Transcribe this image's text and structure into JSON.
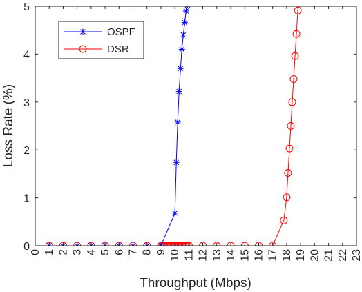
{
  "chart_data": {
    "type": "line",
    "title": "",
    "xlabel": "Throughput (Mbps)",
    "ylabel": "Loss Rate (%)",
    "xlim": [
      0,
      23
    ],
    "ylim": [
      0,
      5
    ],
    "xticks": [
      "0",
      "1",
      "2",
      "3",
      "4",
      "5",
      "6",
      "7",
      "8",
      "9",
      "10",
      "11",
      "12",
      "13",
      "14",
      "15",
      "16",
      "17",
      "18",
      "19",
      "20",
      "21",
      "22",
      "23"
    ],
    "yticks": [
      "0",
      "1",
      "2",
      "3",
      "4",
      "5"
    ],
    "grid": false,
    "legend_position": "top-left",
    "series": [
      {
        "name": "OSPF",
        "color": "#0000ff",
        "marker": "asterisk",
        "x": [
          1,
          2,
          3,
          4,
          5,
          6,
          7,
          8,
          9,
          10,
          10.1,
          10.2,
          10.3,
          10.4,
          10.5,
          10.6,
          10.7,
          10.8,
          10.9,
          11
        ],
        "y": [
          0,
          0,
          0,
          0,
          0,
          0,
          0,
          0,
          0,
          0.68,
          1.74,
          2.58,
          3.22,
          3.7,
          4.1,
          4.4,
          4.66,
          4.9,
          5.02,
          5.15
        ]
      },
      {
        "name": "DSR",
        "color": "#ff0000",
        "marker": "circle",
        "x": [
          1,
          2,
          3,
          4,
          5,
          6,
          7,
          8,
          9,
          9.1,
          9.2,
          9.3,
          9.4,
          9.5,
          9.6,
          9.7,
          9.8,
          9.9,
          10,
          10.1,
          10.2,
          10.3,
          10.4,
          10.5,
          10.6,
          10.7,
          10.8,
          10.9,
          11,
          12,
          13,
          14,
          15,
          16,
          17,
          17.8,
          18,
          18.1,
          18.2,
          18.3,
          18.4,
          18.5,
          18.6,
          18.7,
          18.8,
          18.9
        ],
        "y": [
          0,
          0,
          0,
          0,
          0,
          0,
          0,
          0,
          0,
          0,
          0,
          0,
          0,
          0,
          0,
          0,
          0,
          0,
          0,
          0,
          0,
          0,
          0,
          0,
          0,
          0,
          0,
          0,
          0,
          0,
          0,
          0,
          0,
          0,
          0,
          0.53,
          1.01,
          1.52,
          2.03,
          2.5,
          3.0,
          3.48,
          3.96,
          4.42,
          4.91,
          5.4
        ]
      }
    ]
  }
}
